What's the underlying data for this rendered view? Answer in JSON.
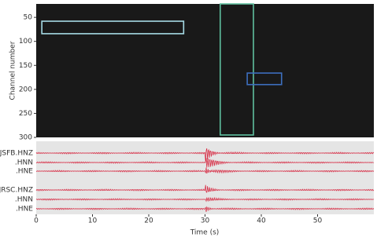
{
  "chart_data": [
    {
      "type": "image",
      "ylabel": "Channel number",
      "xlim": [
        0,
        60
      ],
      "ylim": [
        300,
        22
      ],
      "yticks": [
        50,
        100,
        150,
        200,
        250,
        300
      ],
      "boxes": [
        {
          "color": "#a6dbe6",
          "x": [
            1,
            26.2
          ],
          "y": [
            58,
            84
          ]
        },
        {
          "color": "#5fbf9f",
          "x": [
            32.7,
            38.6
          ],
          "y": [
            22,
            295
          ]
        },
        {
          "color": "#3d6fbf",
          "x": [
            37.5,
            43.6
          ],
          "y": [
            166,
            190
          ]
        }
      ]
    },
    {
      "type": "traces",
      "xlabel": "Time (s)",
      "xlim": [
        0,
        60
      ],
      "xticks": [
        0,
        10,
        20,
        30,
        40,
        50
      ],
      "color": "#d6203a",
      "traces": [
        {
          "name": "JSFB.HNZ"
        },
        {
          "name": ".HNN"
        },
        {
          "name": ".HNE"
        },
        {
          "name": "JRSC.HNZ"
        },
        {
          "name": ".HNN"
        },
        {
          "name": ".HNE"
        }
      ]
    }
  ]
}
